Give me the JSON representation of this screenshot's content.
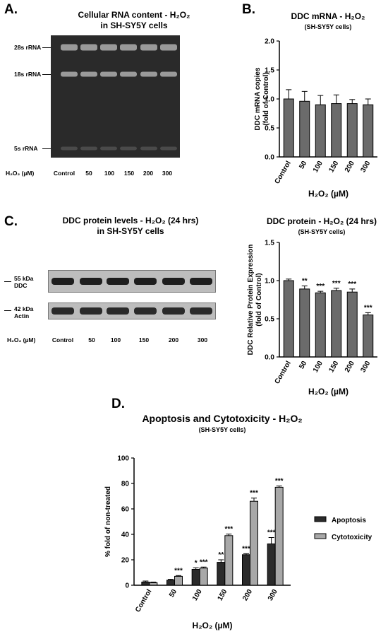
{
  "panels": {
    "A": {
      "letter": "A.",
      "title_line1": "Cellular RNA content - H₂O₂",
      "title_line2": "in SH-SY5Y cells",
      "bands": [
        "28s rRNA",
        "18s rRNA",
        "5s rRNA"
      ],
      "lane_axis_label": "H₂O₂ (µM)",
      "lanes": [
        "Control",
        "50",
        "100",
        "150",
        "200",
        "300"
      ]
    },
    "B": {
      "letter": "B."
    },
    "C": {
      "letter": "C.",
      "title_line1": "DDC protein levels - H₂O₂ (24 hrs)",
      "title_line2": "in SH-SY5Y cells",
      "band1_kda": "55 kDa",
      "band1_name": "DDC",
      "band2_kda": "42 kDa",
      "band2_name": "Actin",
      "lane_axis_label": "H₂O₂ (µM)",
      "lanes": [
        "Control",
        "50",
        "100",
        "150",
        "200",
        "300"
      ]
    },
    "D": {
      "letter": "D."
    }
  },
  "chart_data": [
    {
      "id": "B",
      "type": "bar",
      "title": "DDC mRNA - H₂O₂",
      "subtitle": "(SH-SY5Y cells)",
      "xlabel": "H₂O₂ (µM)",
      "ylabel": [
        "DDC mRNA copies",
        "(fold of Control)"
      ],
      "categories": [
        "Control",
        "50",
        "100",
        "150",
        "200",
        "300"
      ],
      "values": [
        1.0,
        0.96,
        0.9,
        0.92,
        0.92,
        0.9
      ],
      "errors": [
        0.16,
        0.17,
        0.16,
        0.15,
        0.07,
        0.1
      ],
      "annotations": [
        "",
        "",
        "",
        "",
        "",
        ""
      ],
      "ylim": [
        0,
        2.0
      ],
      "yticks": [
        "0.0",
        "0.5",
        "1.0",
        "1.5",
        "2.0"
      ],
      "bar_color": "#6b6b6b"
    },
    {
      "id": "C",
      "type": "bar",
      "title": "DDC protein - H₂O₂ (24 hrs)",
      "subtitle": "(SH-SY5Y cells)",
      "xlabel": "H₂O₂ (µM)",
      "ylabel": [
        "DDC Relative Protein Expression",
        "(fold of Control)"
      ],
      "categories": [
        "Control",
        "50",
        "100",
        "150",
        "200",
        "300"
      ],
      "values": [
        1.0,
        0.89,
        0.84,
        0.87,
        0.85,
        0.55
      ],
      "errors": [
        0.02,
        0.04,
        0.02,
        0.03,
        0.04,
        0.03
      ],
      "annotations": [
        "",
        "**",
        "***",
        "***",
        "***",
        "***"
      ],
      "ylim": [
        0,
        1.5
      ],
      "yticks": [
        "0.0",
        "0.5",
        "1.0",
        "1.5"
      ],
      "bar_color": "#6b6b6b"
    },
    {
      "id": "D",
      "type": "bar",
      "title": "Apoptosis and Cytotoxicity - H₂O₂",
      "subtitle": "(SH-SY5Y cells)",
      "xlabel": "H₂O₂ (µM)",
      "ylabel": [
        "% fold of non-treated"
      ],
      "categories": [
        "Control",
        "50",
        "100",
        "150",
        "200",
        "300"
      ],
      "series": [
        {
          "name": "Apoptosis",
          "values": [
            2.5,
            4,
            12.5,
            18,
            24,
            32.5
          ],
          "errors": [
            0.8,
            0.7,
            1.2,
            2.0,
            0.8,
            5.0
          ],
          "annotations": [
            "",
            "",
            "*",
            "**",
            "***",
            "***"
          ],
          "color": "#2b2b2b"
        },
        {
          "name": "Cytotoxicity",
          "values": [
            2,
            7,
            13.5,
            39,
            66,
            77
          ],
          "errors": [
            0.5,
            0.6,
            0.8,
            1.2,
            2.5,
            1.0
          ],
          "annotations": [
            "",
            "***",
            "***",
            "***",
            "***",
            "***"
          ],
          "color": "#a8a8a8"
        }
      ],
      "ylim": [
        0,
        100
      ],
      "yticks": [
        "0",
        "20",
        "40",
        "60",
        "80",
        "100"
      ],
      "legend": "right"
    }
  ]
}
